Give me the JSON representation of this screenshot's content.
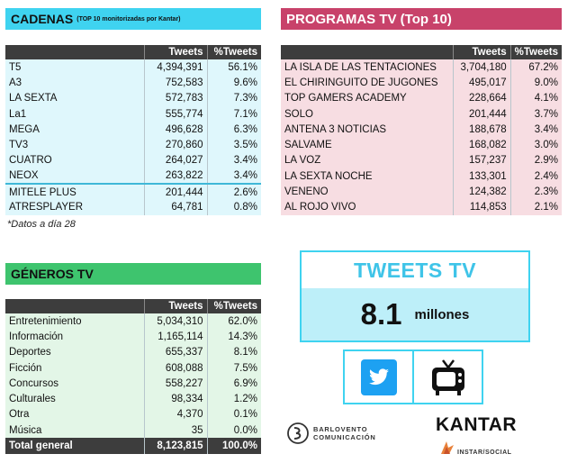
{
  "cadenas": {
    "title": "CADENAS",
    "subtitle": "(TOP 10 monitorizadas por Kantar)",
    "columns": [
      "",
      "Tweets",
      "%Tweets"
    ],
    "rows": [
      {
        "name": "T5",
        "tweets": "4,394,391",
        "pct": "56.1%"
      },
      {
        "name": "A3",
        "tweets": "752,583",
        "pct": "9.6%"
      },
      {
        "name": "LA SEXTA",
        "tweets": "572,783",
        "pct": "7.3%"
      },
      {
        "name": "La1",
        "tweets": "555,774",
        "pct": "7.1%"
      },
      {
        "name": "MEGA",
        "tweets": "496,628",
        "pct": "6.3%"
      },
      {
        "name": "TV3",
        "tweets": "270,860",
        "pct": "3.5%"
      },
      {
        "name": "CUATRO",
        "tweets": "264,027",
        "pct": "3.4%"
      },
      {
        "name": "NEOX",
        "tweets": "263,822",
        "pct": "3.4%"
      },
      {
        "name": "MITELE PLUS",
        "tweets": "201,444",
        "pct": "2.6%"
      },
      {
        "name": "ATRESPLAYER",
        "tweets": "64,781",
        "pct": "0.8%"
      }
    ],
    "note": "*Datos a día 28"
  },
  "programas": {
    "title": "PROGRAMAS TV (Top 10)",
    "columns": [
      "",
      "Tweets",
      "%Tweets"
    ],
    "rows": [
      {
        "name": "LA ISLA DE LAS TENTACIONES",
        "tweets": "3,704,180",
        "pct": "67.2%"
      },
      {
        "name": "EL CHIRINGUITO DE JUGONES",
        "tweets": "495,017",
        "pct": "9.0%"
      },
      {
        "name": "TOP GAMERS ACADEMY",
        "tweets": "228,664",
        "pct": "4.1%"
      },
      {
        "name": "SOLO",
        "tweets": "201,444",
        "pct": "3.7%"
      },
      {
        "name": "ANTENA 3 NOTICIAS",
        "tweets": "188,678",
        "pct": "3.4%"
      },
      {
        "name": "SALVAME",
        "tweets": "168,082",
        "pct": "3.0%"
      },
      {
        "name": "LA VOZ",
        "tweets": "157,237",
        "pct": "2.9%"
      },
      {
        "name": "LA SEXTA NOCHE",
        "tweets": "133,301",
        "pct": "2.4%"
      },
      {
        "name": "VENENO",
        "tweets": "124,382",
        "pct": "2.3%"
      },
      {
        "name": "AL ROJO VIVO",
        "tweets": "114,853",
        "pct": "2.1%"
      }
    ]
  },
  "generos": {
    "title": "GÉNEROS TV",
    "columns": [
      "",
      "Tweets",
      "%Tweets"
    ],
    "rows": [
      {
        "name": "Entretenimiento",
        "tweets": "5,034,310",
        "pct": "62.0%"
      },
      {
        "name": "Información",
        "tweets": "1,165,114",
        "pct": "14.3%"
      },
      {
        "name": "Deportes",
        "tweets": "655,337",
        "pct": "8.1%"
      },
      {
        "name": "Ficción",
        "tweets": "608,088",
        "pct": "7.5%"
      },
      {
        "name": "Concursos",
        "tweets": "558,227",
        "pct": "6.9%"
      },
      {
        "name": "Culturales",
        "tweets": "98,334",
        "pct": "1.2%"
      },
      {
        "name": "Otra",
        "tweets": "4,370",
        "pct": "0.1%"
      },
      {
        "name": "Música",
        "tweets": "35",
        "pct": "0.0%"
      }
    ],
    "total": {
      "name": "Total general",
      "tweets": "8,123,815",
      "pct": "100.0%"
    }
  },
  "tweets_tv": {
    "title": "TWEETS TV",
    "value": "8.1",
    "unit": "millones"
  },
  "icons": {
    "twitter": "twitter-icon",
    "tv": "tv-icon"
  },
  "logos": {
    "barlovento_line1": "BARLOVENTO",
    "barlovento_line2": "COMUNICACIÓN",
    "kantar": "KANTAR",
    "instar": "INSTAR/SOCIAL"
  },
  "colors": {
    "cadenas_accent": "#3fd3f0",
    "programas_accent": "#c8426a",
    "generos_accent": "#3ec46e",
    "twitter_blue": "#1da1f2"
  }
}
